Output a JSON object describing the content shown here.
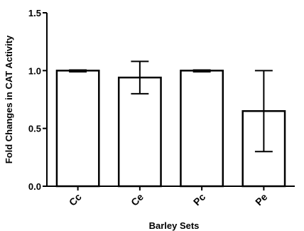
{
  "chart_data": {
    "type": "bar",
    "categories": [
      "Cc",
      "Ce",
      "Pc",
      "Pe"
    ],
    "values": [
      1.0,
      0.94,
      1.0,
      0.65
    ],
    "error_bars": [
      {
        "low": 0.99,
        "high": 1.005
      },
      {
        "low": 0.8,
        "high": 1.08
      },
      {
        "low": 0.99,
        "high": 1.005
      },
      {
        "low": 0.3,
        "high": 1.0
      }
    ],
    "xlabel": "Barley Sets",
    "ylabel": "Fold Changes in CAT Activity",
    "ylim": [
      0,
      1.5
    ],
    "yticks": [
      0.0,
      0.5,
      1.0,
      1.5
    ],
    "ytick_labels": [
      "0.0",
      "0.5",
      "1.0",
      "1.5"
    ],
    "grid": false,
    "bar_fill": "#ffffff",
    "bar_stroke": "#000000"
  }
}
